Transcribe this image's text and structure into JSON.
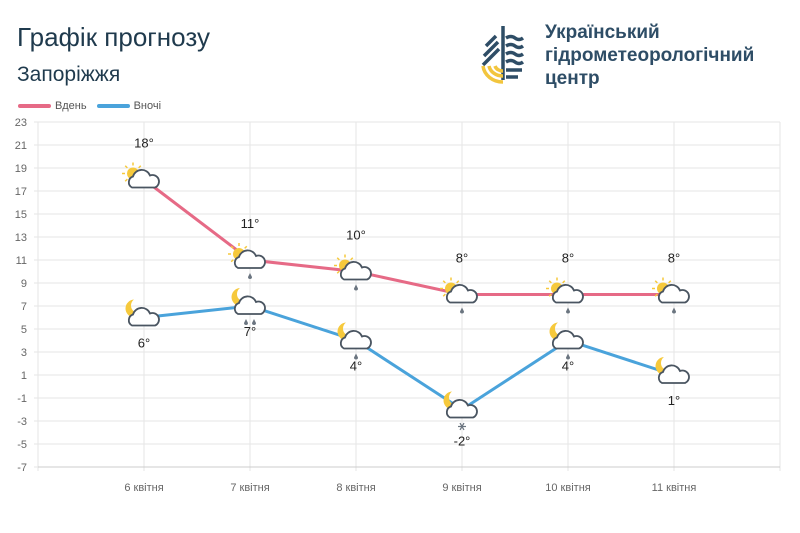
{
  "header": {
    "title": "Графік прогнозу",
    "city": "Запоріжжя"
  },
  "logo": {
    "org_lines": [
      "Український",
      "гідрометеорологічний",
      "центр"
    ]
  },
  "colors": {
    "day": "#e66a86",
    "night": "#4aa3db",
    "grid": "#e6e6e6",
    "text": "#666"
  },
  "chart_data": {
    "type": "line",
    "title": "Графік прогнозу",
    "categories": [
      "6 квітня",
      "7 квітня",
      "8 квітня",
      "9 квітня",
      "10 квітня",
      "11 квітня"
    ],
    "series": [
      {
        "name": "Вдень",
        "values": [
          18,
          11,
          10,
          8,
          8,
          8
        ],
        "labels": [
          "18°",
          "11°",
          "10°",
          "8°",
          "8°",
          "8°"
        ],
        "icons": [
          "sun-cloud",
          "sun-cloud-rain",
          "sun-cloud-rain",
          "sun-cloud-rain",
          "sun-cloud-rain",
          "sun-cloud-rain"
        ]
      },
      {
        "name": "Вночі",
        "values": [
          6,
          7,
          4,
          -2,
          4,
          1
        ],
        "labels": [
          "6°",
          "7°",
          "4°",
          "-2°",
          "4°",
          "1°"
        ],
        "icons": [
          "moon-cloud",
          "moon-cloud-heavy-rain",
          "moon-cloud-rain",
          "moon-cloud-snow",
          "moon-cloud-rain",
          "moon-cloud"
        ]
      }
    ],
    "yticks": [
      "23",
      "21",
      "19",
      "17",
      "15",
      "13",
      "11",
      "9",
      "7",
      "5",
      "3",
      "1",
      "-1",
      "-3",
      "-5",
      "-7"
    ],
    "ylim": [
      -7,
      23
    ],
    "grid": true,
    "legend": "top-left"
  }
}
